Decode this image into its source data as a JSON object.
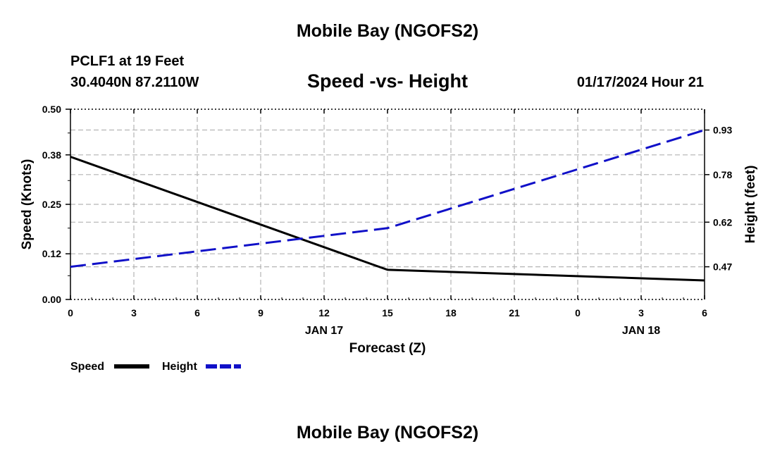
{
  "header": {
    "title": "Mobile Bay (NGOFS2)",
    "station": "PCLF1 at 19 Feet",
    "coords": "30.4040N  87.2110W",
    "subtitle": "Speed -vs- Height",
    "datetime": "01/17/2024 Hour 21"
  },
  "footer": {
    "title": "Mobile Bay (NGOFS2)"
  },
  "chart_data": {
    "type": "line",
    "title": "Speed -vs- Height",
    "xlabel": "Forecast (Z)",
    "ylabel": "Speed (Knots)",
    "y2label": "Height (feet)",
    "x_hours": [
      0,
      3,
      6,
      9,
      12,
      15,
      18,
      21,
      24,
      27,
      30
    ],
    "x_tick_labels": [
      "0",
      "3",
      "6",
      "9",
      "12",
      "15",
      "18",
      "21",
      "0",
      "3",
      "6"
    ],
    "date_labels": [
      {
        "hour": 12,
        "label": "JAN 17"
      },
      {
        "hour": 27,
        "label": "JAN 18"
      }
    ],
    "xlim": [
      0,
      30
    ],
    "ylim": [
      0,
      0.5
    ],
    "y_ticks": [
      "0.00",
      "0.12",
      "0.25",
      "0.38",
      "0.50"
    ],
    "y2lim": [
      0.36,
      1.0
    ],
    "y2_ticks": [
      "0.47",
      "0.62",
      "0.78",
      "0.93"
    ],
    "series": [
      {
        "name": "Speed",
        "axis": "left",
        "color": "#000000",
        "dashed": false,
        "x": [
          0,
          15,
          30
        ],
        "y": [
          0.375,
          0.078,
          0.05
        ]
      },
      {
        "name": "Height",
        "axis": "right",
        "color": "#1010c8",
        "dashed": true,
        "x": [
          0,
          15,
          30
        ],
        "y": [
          0.47,
          0.6,
          0.93
        ]
      }
    ],
    "legend": [
      {
        "label": "Speed",
        "color": "#000000",
        "dashed": false
      },
      {
        "label": "Height",
        "color": "#1010c8",
        "dashed": true
      }
    ],
    "grid": true
  }
}
